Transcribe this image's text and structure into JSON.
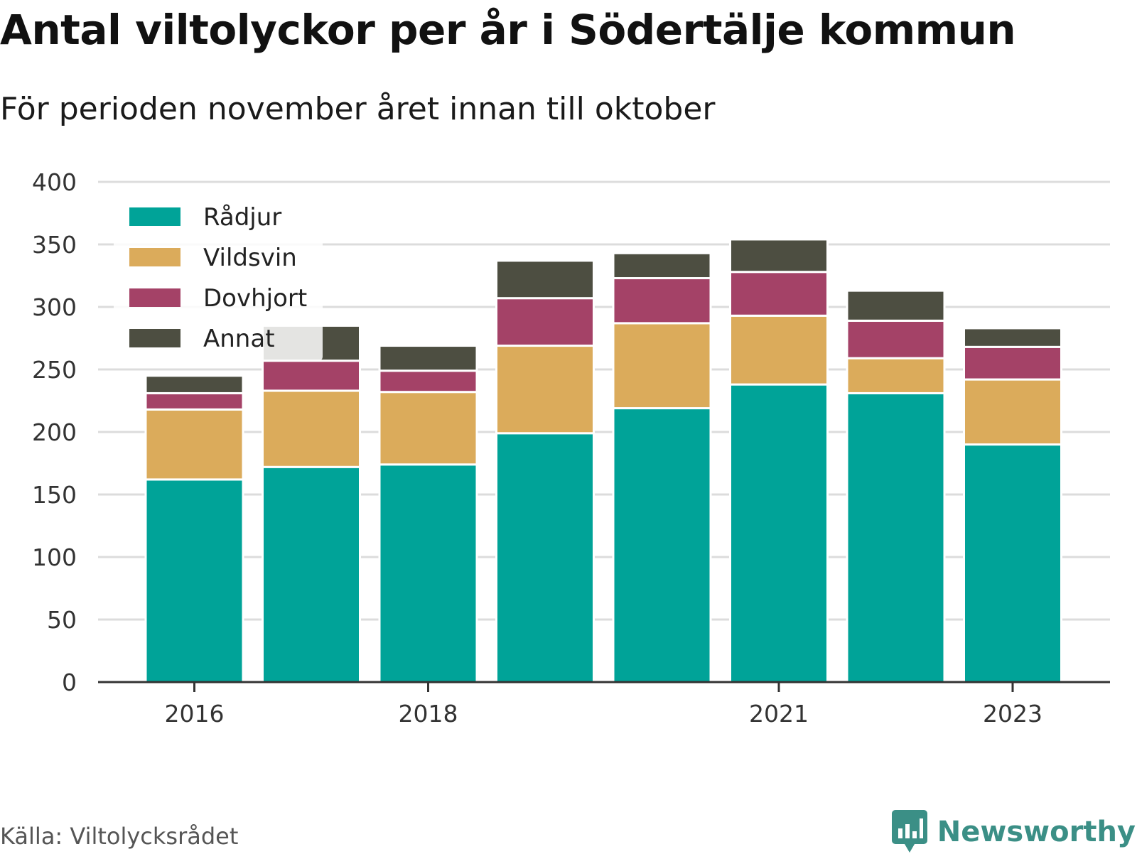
{
  "title": "Antal viltolyckor per år i Södertälje kommun",
  "subtitle": "För perioden november året innan till oktober",
  "source": "Källa: Viltolycksrådet",
  "brand": {
    "name": "Newsworthy",
    "icon": "newsworthy-chart-bubble-icon",
    "color": "#3b8f86"
  },
  "chart_data": {
    "type": "bar",
    "stacked": true,
    "categories": [
      "2016",
      "2017",
      "2018",
      "2019",
      "2020",
      "2021",
      "2022",
      "2023"
    ],
    "x_tick_labels": [
      "2016",
      "2018",
      "2021",
      "2023"
    ],
    "ylim": [
      0,
      400
    ],
    "y_ticks": [
      0,
      50,
      100,
      150,
      200,
      250,
      300,
      350,
      400
    ],
    "grid": true,
    "legend_position": "top-left",
    "series": [
      {
        "name": "Rådjur",
        "color": "#00a398",
        "values": [
          162,
          172,
          174,
          199,
          219,
          238,
          231,
          190
        ]
      },
      {
        "name": "Vildsvin",
        "color": "#dbab5b",
        "values": [
          56,
          61,
          58,
          70,
          68,
          55,
          28,
          52
        ]
      },
      {
        "name": "Dovhjort",
        "color": "#a44267",
        "values": [
          13,
          24,
          17,
          38,
          36,
          35,
          30,
          26
        ]
      },
      {
        "name": "Annat",
        "color": "#4d4e41",
        "values": [
          14,
          28,
          20,
          30,
          20,
          26,
          24,
          15
        ]
      }
    ]
  }
}
